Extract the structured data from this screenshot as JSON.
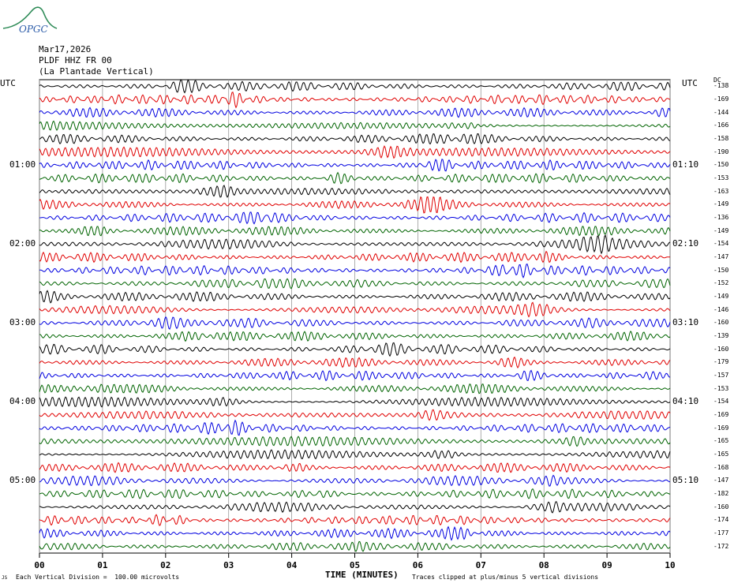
{
  "logo": {
    "text": "OPGC",
    "color": "#2e8b57",
    "text_color": "#2a5aa8"
  },
  "header": {
    "date": "Mar17,2026",
    "channel": "PLDF HHZ FR 00",
    "station": "(La Plantade Vertical)"
  },
  "labels": {
    "utc_left": "UTC",
    "utc_right": "UTC",
    "dc": "DC",
    "x_axis": "TIME (MINUTES)",
    "scale_note": "Each Vertical Division =  100.00 microvolts",
    "clip_note": "Traces clipped at plus/minus 5 vertical divisions",
    "corner_mark": "JS"
  },
  "chart_data": {
    "type": "line",
    "title": "",
    "xlabel": "TIME (MINUTES)",
    "xlim": [
      0,
      10
    ],
    "x_ticks": [
      "00",
      "01",
      "02",
      "03",
      "04",
      "05",
      "06",
      "07",
      "08",
      "09",
      "10"
    ],
    "trace_colors": [
      "#000000",
      "#e00000",
      "#0000e0",
      "#006400"
    ],
    "left_time_labels": [
      {
        "trace": 6,
        "label": "01:00"
      },
      {
        "trace": 12,
        "label": "02:00"
      },
      {
        "trace": 18,
        "label": "03:00"
      },
      {
        "trace": 24,
        "label": "04:00"
      },
      {
        "trace": 30,
        "label": "05:00"
      }
    ],
    "right_time_labels": [
      {
        "trace": 6,
        "label": "01:10"
      },
      {
        "trace": 12,
        "label": "02:10"
      },
      {
        "trace": 18,
        "label": "03:10"
      },
      {
        "trace": 24,
        "label": "04:10"
      },
      {
        "trace": 30,
        "label": "05:10"
      }
    ],
    "dc_offsets": [
      "-138",
      "-169",
      "-144",
      "-166",
      "-158",
      "-190",
      "-150",
      "-153",
      "-163",
      "-149",
      "-136",
      "-149",
      "-154",
      "-147",
      "-150",
      "-152",
      "-149",
      "-146",
      "-160",
      "-139",
      "-160",
      "-179",
      "-157",
      "-153",
      "-154",
      "-169",
      "-169",
      "-165",
      "-165",
      "-168",
      "-147",
      "-182",
      "-160",
      "-174",
      "-177",
      "-172"
    ]
  }
}
